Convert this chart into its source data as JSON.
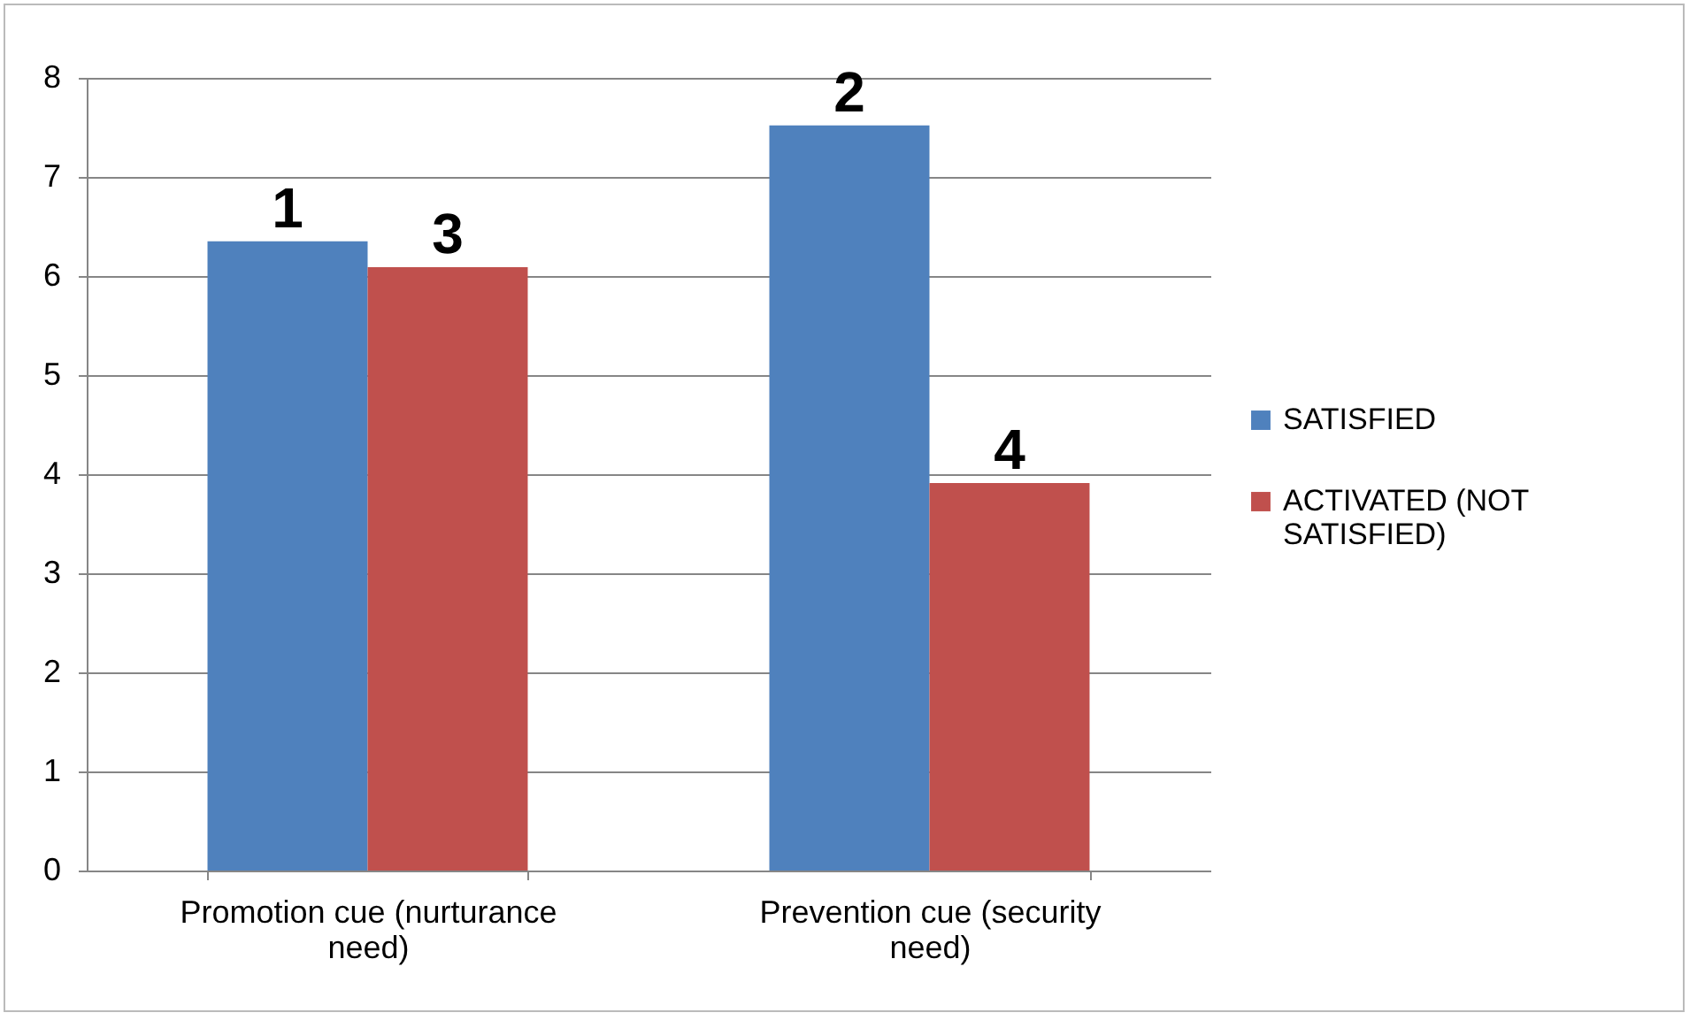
{
  "chart_data": {
    "type": "bar",
    "categories": [
      "Promotion cue (nurturance need)",
      "Prevention cue (security need)"
    ],
    "series": [
      {
        "name": "SATISFIED",
        "color": "#4f81bd",
        "values": [
          6.35,
          7.52
        ]
      },
      {
        "name": "ACTIVATED (NOT SATISFIED)",
        "color": "#c0504d",
        "values": [
          6.09,
          3.91
        ]
      }
    ],
    "ylim": [
      0,
      8
    ],
    "yticks": [
      0,
      1,
      2,
      3,
      4,
      5,
      6,
      7,
      8
    ],
    "grid": "y",
    "legend": "right",
    "annotations": [
      {
        "text": "1",
        "x": "Promotion cue (nurturance need)",
        "y": 6.35
      },
      {
        "text": "3",
        "x": "Promotion cue (nurturance need)",
        "y": 6.09
      },
      {
        "text": "2",
        "x": "Prevention cue (security need)",
        "y": 7.52
      },
      {
        "text": "4",
        "x": "Prevention cue (security need)",
        "y": 3.91
      }
    ]
  }
}
